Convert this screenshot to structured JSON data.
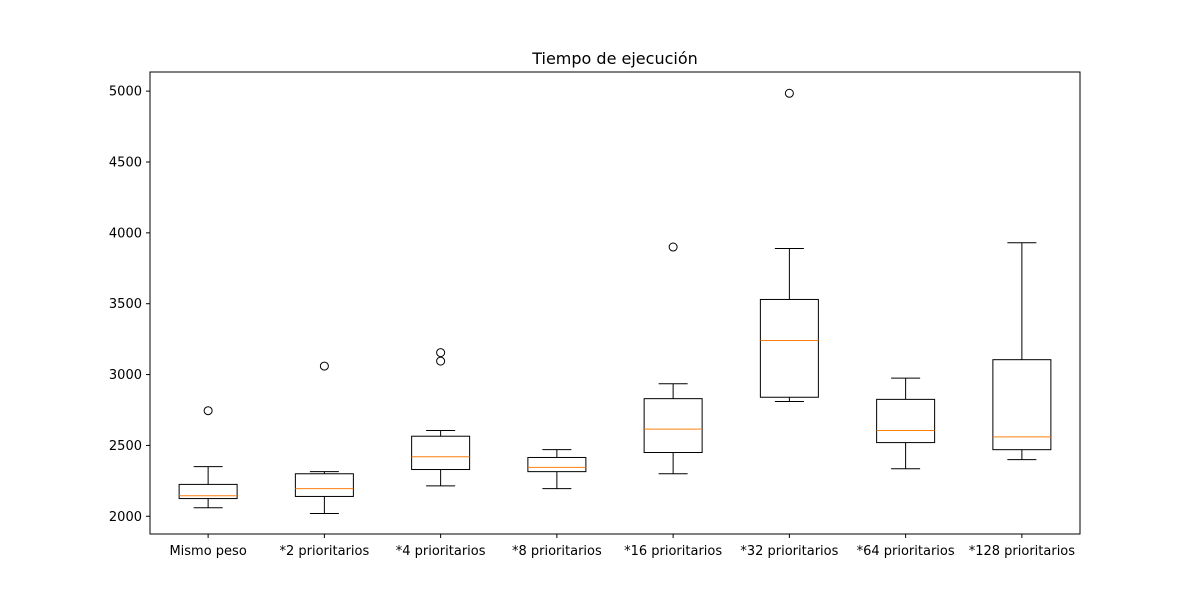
{
  "chart_data": {
    "type": "boxplot",
    "title": "Tiempo de ejecución",
    "xlabel": "",
    "ylabel": "",
    "ylim": [
      1875,
      5135
    ],
    "yticks": [
      2000,
      2500,
      3000,
      3500,
      4000,
      4500,
      5000
    ],
    "grid": false,
    "categories": [
      "Mismo peso",
      "*2 prioritarios",
      "*4 prioritarios",
      "*8 prioritarios",
      "*16 prioritarios",
      "*32 prioritarios",
      "*64 prioritarios",
      "*128 prioritarios"
    ],
    "boxes": [
      {
        "whisker_low": 2060,
        "q1": 2125,
        "median": 2145,
        "q3": 2225,
        "whisker_high": 2350,
        "outliers": [
          2745
        ]
      },
      {
        "whisker_low": 2020,
        "q1": 2140,
        "median": 2195,
        "q3": 2300,
        "whisker_high": 2315,
        "outliers": [
          3060
        ]
      },
      {
        "whisker_low": 2215,
        "q1": 2330,
        "median": 2420,
        "q3": 2565,
        "whisker_high": 2605,
        "outliers": [
          3095,
          3155
        ]
      },
      {
        "whisker_low": 2195,
        "q1": 2315,
        "median": 2345,
        "q3": 2415,
        "whisker_high": 2470,
        "outliers": []
      },
      {
        "whisker_low": 2300,
        "q1": 2450,
        "median": 2615,
        "q3": 2830,
        "whisker_high": 2935,
        "outliers": [
          3900
        ]
      },
      {
        "whisker_low": 2810,
        "q1": 2840,
        "median": 3240,
        "q3": 3530,
        "whisker_high": 3890,
        "outliers": [
          4985
        ]
      },
      {
        "whisker_low": 2335,
        "q1": 2520,
        "median": 2605,
        "q3": 2825,
        "whisker_high": 2975,
        "outliers": []
      },
      {
        "whisker_low": 2400,
        "q1": 2470,
        "median": 2560,
        "q3": 3105,
        "whisker_high": 3930,
        "outliers": []
      }
    ],
    "colors": {
      "box": "#000000",
      "median": "#ff7f0e",
      "outlier": "#000000"
    }
  }
}
